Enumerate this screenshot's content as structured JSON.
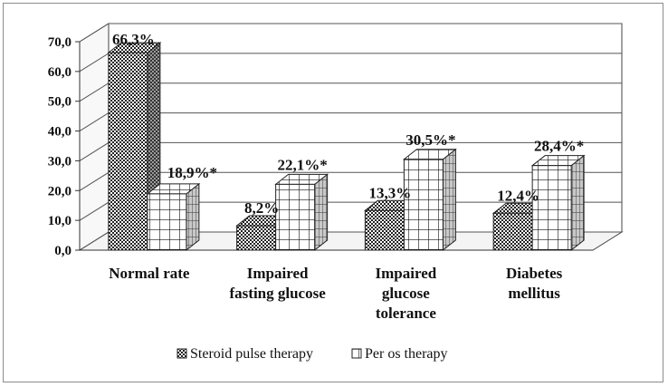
{
  "chart_data": {
    "type": "bar",
    "title": "",
    "xlabel": "",
    "ylabel": "",
    "ylim": [
      0,
      70
    ],
    "yticks": [
      "0,0",
      "10,0",
      "20,0",
      "30,0",
      "40,0",
      "50,0",
      "60,0",
      "70,0"
    ],
    "grid": true,
    "legend_position": "bottom",
    "categories": [
      [
        "Normal rate"
      ],
      [
        "Impaired",
        "fasting glucose"
      ],
      [
        "Impaired",
        "glucose",
        "tolerance"
      ],
      [
        "Diabetes",
        "mellitus"
      ]
    ],
    "series": [
      {
        "name": "Steroid pulse therapy",
        "pattern": "checker",
        "values": [
          66.3,
          8.2,
          13.3,
          12.4
        ],
        "labels": [
          "66,3%",
          "8,2%",
          "13,3%",
          "12,4%"
        ]
      },
      {
        "name": "Per os therapy",
        "pattern": "grid",
        "values": [
          18.9,
          22.1,
          30.5,
          28.4
        ],
        "labels": [
          "18,9%*",
          "22,1%*",
          "30,5%*",
          "28,4%*"
        ]
      }
    ]
  }
}
